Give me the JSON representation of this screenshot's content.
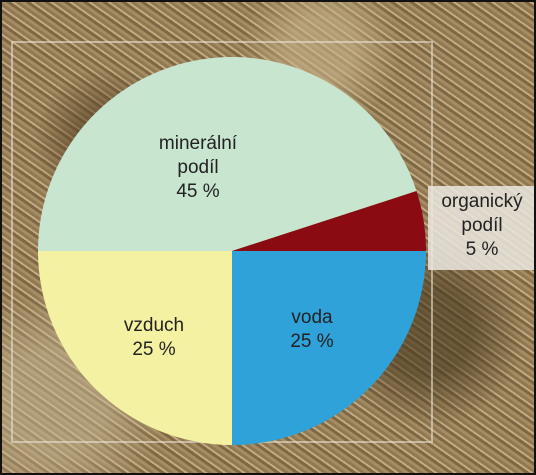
{
  "chart_data": {
    "type": "pie",
    "categories": [
      "minerální podíl",
      "organický podíl",
      "voda",
      "vzduch"
    ],
    "values": [
      45,
      5,
      25,
      25
    ],
    "value_labels": [
      "45 %",
      "5 %",
      "25 %",
      "25 %"
    ],
    "colors": [
      "#c8e5d0",
      "#8a0c12",
      "#2ea2d9",
      "#f5f1a2"
    ]
  }
}
